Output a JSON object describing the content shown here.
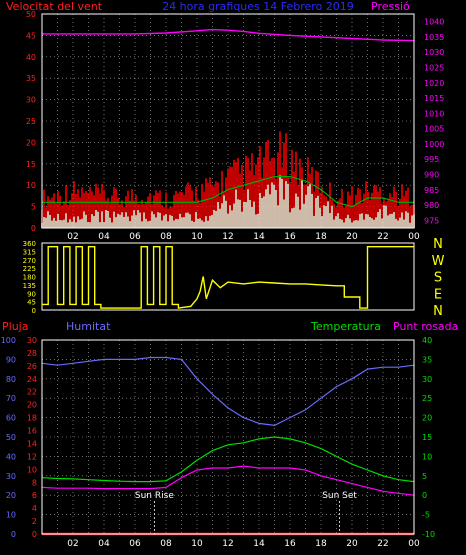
{
  "header": {
    "left_label": "Velocitat del vent",
    "center_label": "24 hora grafiques 14 Febrero 2019",
    "right_label": "Pressió"
  },
  "colors": {
    "background": "#000000",
    "wind_left_axis": "#ff2020",
    "pressure": "#ff00ff",
    "title_blue": "#2a2aff",
    "gust": "#ff0000",
    "avg_wind": "#00b000",
    "wind_speed": "#e8f8e0",
    "direction": "#ffff00",
    "rain": "#ff2020",
    "humidity": "#6a6aff",
    "temperature": "#00dd00",
    "dew_point": "#ff00ff",
    "grid": "#ffffff"
  },
  "chart_data": [
    {
      "type": "line",
      "panel": "wind_pressure",
      "x_tick_labels": [
        "02",
        "04",
        "06",
        "08",
        "10",
        "12",
        "14",
        "16",
        "18",
        "20",
        "22",
        "00"
      ],
      "left_axis": {
        "label": "Velocitat del vent",
        "ticks": [
          0,
          5,
          10,
          15,
          20,
          25,
          30,
          35,
          40,
          45,
          50
        ],
        "ylim": [
          0,
          50
        ]
      },
      "right_axis": {
        "label": "Pressió",
        "ticks": [
          975,
          980,
          985,
          990,
          995,
          1000,
          1005,
          1010,
          1015,
          1020,
          1025,
          1030,
          1035,
          1040
        ],
        "ylim": [
          972.5,
          1042.5
        ]
      },
      "series": [
        {
          "name": "Pressió",
          "axis": "right",
          "x": [
            0,
            2,
            4,
            6,
            8,
            10,
            11,
            12,
            13,
            14,
            16,
            18,
            20,
            22,
            24
          ],
          "values": [
            1036,
            1036,
            1036,
            1036,
            1036.3,
            1037,
            1037.4,
            1037.2,
            1036.8,
            1036.2,
            1035.5,
            1035,
            1034.5,
            1034,
            1033.8
          ]
        },
        {
          "name": "gust",
          "axis": "left",
          "x": [
            0,
            1,
            2,
            3,
            4,
            5,
            6,
            7,
            8,
            9,
            10,
            11,
            12,
            13,
            14,
            15,
            15.5,
            16,
            16.5,
            17,
            18,
            19,
            20,
            21,
            22,
            23,
            24
          ],
          "values": [
            8,
            9,
            10,
            9,
            9,
            8,
            9,
            9,
            8,
            9,
            10,
            11,
            14,
            15,
            17,
            19,
            20,
            19,
            17,
            15,
            12,
            8,
            9,
            10,
            10,
            9,
            9
          ]
        },
        {
          "name": "avg",
          "axis": "left",
          "x": [
            0,
            2,
            4,
            6,
            8,
            10,
            11,
            12,
            13,
            14,
            15,
            16,
            17,
            18,
            19,
            20,
            21,
            22,
            23,
            24
          ],
          "values": [
            6,
            6,
            6,
            6,
            6,
            6,
            7,
            9,
            10,
            11,
            12,
            12,
            11,
            9,
            6,
            5,
            7,
            7,
            6,
            6
          ]
        },
        {
          "name": "speed",
          "axis": "left",
          "x": [
            0,
            2,
            4,
            6,
            8,
            10,
            11,
            12,
            13,
            14,
            15,
            16,
            17,
            18,
            19,
            20,
            21,
            22,
            23,
            24
          ],
          "values": [
            3,
            3,
            3,
            3,
            3,
            3,
            4,
            6,
            7,
            8,
            9,
            9,
            8,
            6,
            3,
            2,
            4,
            4,
            3,
            3
          ]
        }
      ]
    },
    {
      "type": "line",
      "panel": "wind_direction",
      "left_axis": {
        "ticks": [
          0,
          45,
          90,
          135,
          180,
          225,
          270,
          315,
          360
        ],
        "ylim": [
          0,
          360
        ]
      },
      "right_labels": [
        "N",
        "W",
        "S",
        "E",
        "N"
      ],
      "series": [
        {
          "name": "direction",
          "x": [
            0,
            0.4,
            0.4,
            1,
            1,
            1.4,
            1.4,
            1.8,
            1.8,
            2.2,
            2.2,
            2.6,
            2.6,
            3,
            3,
            3.4,
            3.4,
            3.8,
            3.8,
            6.4,
            6.4,
            6.8,
            6.8,
            7.2,
            7.2,
            7.6,
            7.6,
            8,
            8,
            8.4,
            8.4,
            8.8,
            8.8,
            9.6,
            10,
            10.2,
            10.4,
            10.6,
            11,
            11.5,
            12,
            13,
            14,
            15,
            16,
            17,
            18,
            19,
            19.5,
            19.5,
            20.5,
            20.5,
            21,
            21,
            24
          ],
          "values": [
            30,
            30,
            340,
            340,
            30,
            30,
            340,
            340,
            30,
            30,
            340,
            340,
            30,
            30,
            340,
            340,
            30,
            30,
            10,
            10,
            340,
            340,
            30,
            30,
            340,
            340,
            30,
            30,
            340,
            340,
            30,
            30,
            10,
            20,
            60,
            100,
            180,
            60,
            160,
            120,
            150,
            140,
            150,
            145,
            140,
            140,
            135,
            130,
            130,
            70,
            70,
            10,
            10,
            340,
            340
          ]
        }
      ]
    },
    {
      "type": "line",
      "panel": "humidity_temperature",
      "legend": [
        "Pluja",
        "Humitat",
        "Temperatura",
        "Punt rosada"
      ],
      "humidity_axis": {
        "label": "Humitat",
        "ticks": [
          0,
          10,
          20,
          30,
          40,
          50,
          60,
          70,
          80,
          90,
          100
        ],
        "ylim": [
          0,
          100
        ]
      },
      "rain_axis": {
        "label": "Pluja",
        "ticks": [
          0,
          2,
          4,
          6,
          8,
          10,
          12,
          14,
          16,
          18,
          20,
          22,
          24,
          26,
          28,
          30
        ],
        "ylim": [
          0,
          30
        ]
      },
      "temp_axis": {
        "label": "Temperatura",
        "ticks": [
          -10,
          -5,
          0,
          5,
          10,
          15,
          20,
          25,
          30,
          35,
          40
        ],
        "ylim": [
          -10,
          40
        ]
      },
      "annotations": [
        "Sun Rise",
        "Sun Set"
      ],
      "annotation_hours": [
        7.25,
        19.2
      ],
      "series": [
        {
          "name": "Humitat",
          "axis": "humidity",
          "x": [
            0,
            1,
            2,
            3,
            4,
            5,
            6,
            7,
            8,
            9,
            10,
            11,
            12,
            13,
            14,
            15,
            16,
            17,
            18,
            19,
            20,
            21,
            22,
            23,
            24
          ],
          "values": [
            88,
            87,
            88,
            89,
            90,
            90,
            90,
            91,
            91,
            90,
            80,
            72,
            65,
            60,
            57,
            56,
            60,
            64,
            70,
            76,
            80,
            85,
            86,
            86,
            87
          ]
        },
        {
          "name": "Temperatura",
          "axis": "temp",
          "x": [
            0,
            1,
            2,
            3,
            4,
            5,
            6,
            7,
            8,
            9,
            10,
            11,
            12,
            13,
            14,
            15,
            16,
            17,
            18,
            19,
            20,
            21,
            22,
            23,
            24
          ],
          "values": [
            4.5,
            4.3,
            4.2,
            4,
            3.8,
            3.6,
            3.5,
            3.5,
            3.7,
            6,
            9,
            11.5,
            13,
            13.5,
            14.5,
            15,
            14.5,
            13.5,
            12,
            10,
            8,
            6.5,
            5,
            4,
            3.5
          ]
        },
        {
          "name": "Punt rosada",
          "axis": "temp",
          "x": [
            0,
            1,
            2,
            3,
            4,
            5,
            6,
            7,
            8,
            9,
            10,
            11,
            12,
            13,
            14,
            15,
            16,
            17,
            18,
            19,
            20,
            21,
            22,
            23,
            24
          ],
          "values": [
            2,
            1.8,
            1.8,
            1.8,
            1.7,
            1.7,
            1.7,
            1.7,
            2,
            4.5,
            6.5,
            7,
            7,
            7.5,
            7,
            7,
            7,
            6.5,
            5,
            4,
            3,
            2,
            1,
            0.5,
            0
          ]
        },
        {
          "name": "Pluja",
          "axis": "rain",
          "x": [
            0,
            24
          ],
          "values": [
            0,
            0
          ]
        }
      ]
    }
  ]
}
